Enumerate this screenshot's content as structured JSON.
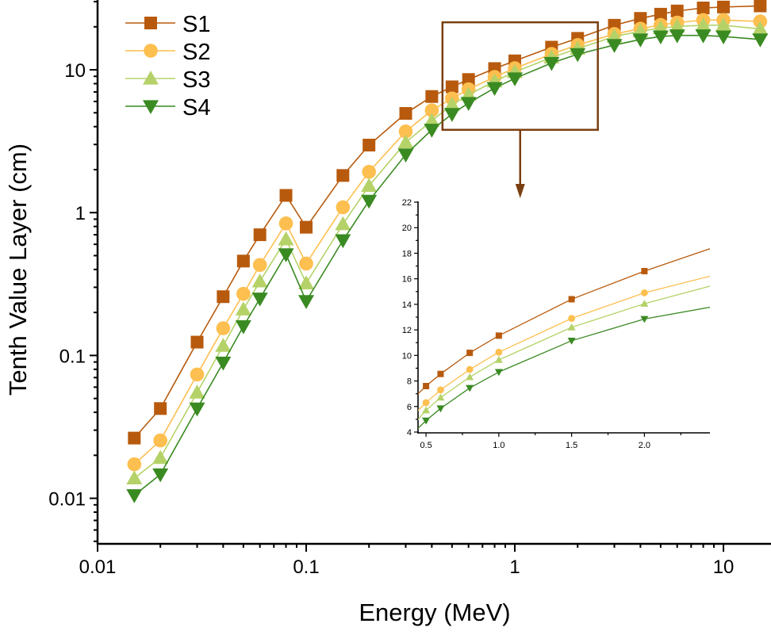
{
  "chart_data": [
    {
      "type": "line",
      "xlabel": "Energy (MeV)",
      "ylabel": "Tenth Value Layer (cm)",
      "xscale": "log",
      "yscale": "log",
      "xlim": [
        0.01,
        16.9
      ],
      "ylim": [
        0.0048,
        30.8
      ],
      "xticks": [
        {
          "v": 0.01,
          "label": "0.01"
        },
        {
          "v": 0.1,
          "label": "0.1"
        },
        {
          "v": 1,
          "label": "1"
        },
        {
          "v": 10,
          "label": "10"
        }
      ],
      "yticks": [
        {
          "v": 0.01,
          "label": "0.01"
        },
        {
          "v": 0.1,
          "label": "0.1"
        },
        {
          "v": 1,
          "label": "1"
        },
        {
          "v": 10,
          "label": "10"
        }
      ],
      "grid": false,
      "legend_position": "top-left",
      "x": [
        0.015,
        0.02,
        0.03,
        0.04,
        0.05,
        0.06,
        0.08,
        0.1,
        0.15,
        0.2,
        0.3,
        0.4,
        0.5,
        0.6,
        0.8,
        1,
        1.5,
        2,
        3,
        4,
        5,
        6,
        8,
        10,
        15
      ],
      "series": [
        {
          "name": "S1",
          "color": "#B85A0D",
          "marker": "square",
          "values": [
            0.0264,
            0.0425,
            0.124,
            0.258,
            0.458,
            0.7,
            1.32,
            0.79,
            1.82,
            2.97,
            4.95,
            6.5,
            7.6,
            8.55,
            10.2,
            11.55,
            14.4,
            16.6,
            20.5,
            22.9,
            24.5,
            25.8,
            27.1,
            27.5,
            28.0
          ]
        },
        {
          "name": "S2",
          "color": "#FDBF4F",
          "marker": "circle",
          "values": [
            0.0173,
            0.0254,
            0.0736,
            0.155,
            0.27,
            0.43,
            0.84,
            0.44,
            1.09,
            1.93,
            3.7,
            5.2,
            6.3,
            7.3,
            8.9,
            10.25,
            12.9,
            14.9,
            17.8,
            19.4,
            20.6,
            21.4,
            22.3,
            22.3,
            21.8
          ]
        },
        {
          "name": "S3",
          "color": "#B5D268",
          "marker": "triangle-up",
          "values": [
            0.0138,
            0.0192,
            0.055,
            0.117,
            0.21,
            0.33,
            0.65,
            0.32,
            0.83,
            1.54,
            3.1,
            4.4,
            5.7,
            6.7,
            8.3,
            9.65,
            12.2,
            14.05,
            17.1,
            18.6,
            19.6,
            20.1,
            20.5,
            20.5,
            19.3
          ]
        },
        {
          "name": "S4",
          "color": "#3A8A22",
          "marker": "triangle-down",
          "values": [
            0.0105,
            0.0147,
            0.0425,
            0.089,
            0.16,
            0.25,
            0.51,
            0.24,
            0.64,
            1.21,
            2.55,
            3.8,
            4.9,
            5.85,
            7.45,
            8.7,
            11.15,
            12.85,
            14.9,
            16.3,
            17.1,
            17.4,
            17.4,
            17.1,
            16.3
          ]
        }
      ]
    },
    {
      "type": "line",
      "role": "inset zoom of main chart",
      "xscale": "linear",
      "yscale": "linear",
      "xlim": [
        0.445,
        2.45
      ],
      "ylim": [
        4,
        22
      ],
      "xticks": [
        {
          "v": 0.5,
          "label": "0.5"
        },
        {
          "v": 1.0,
          "label": "1.0"
        },
        {
          "v": 1.5,
          "label": "1.5"
        },
        {
          "v": 2.0,
          "label": "2.0"
        }
      ],
      "yticks": [
        {
          "v": 4,
          "label": "4"
        },
        {
          "v": 6,
          "label": "6"
        },
        {
          "v": 8,
          "label": "8"
        },
        {
          "v": 10,
          "label": "10"
        },
        {
          "v": 12,
          "label": "12"
        },
        {
          "v": 14,
          "label": "14"
        },
        {
          "v": 16,
          "label": "16"
        },
        {
          "v": 18,
          "label": "18"
        },
        {
          "v": 20,
          "label": "20"
        },
        {
          "v": 22,
          "label": "22"
        }
      ],
      "grid": false,
      "zoom_box": {
        "xrange": [
          0.45,
          2.5
        ],
        "yrange": [
          3.8,
          21.5
        ],
        "color": "#7A3F10"
      }
    }
  ]
}
